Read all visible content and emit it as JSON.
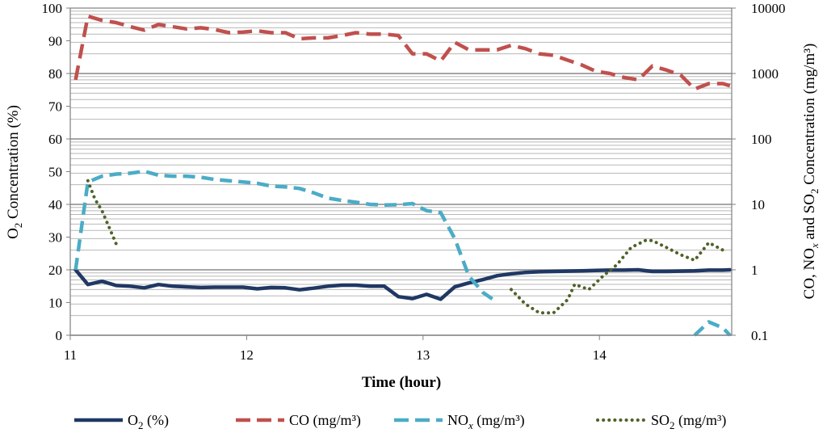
{
  "chart_data": {
    "type": "line",
    "title": "",
    "xlabel": "Time (hour)",
    "ylabel_left": "O2 Concentration (%)",
    "ylabel_right": "CO, NOx and SO2 Concentration (mg/m³)",
    "xlim": [
      11.0,
      14.75
    ],
    "ylim_left": [
      0,
      100
    ],
    "ylim_right": [
      0.1,
      10000
    ],
    "right_axis_scale": "log",
    "grid": true,
    "legend_position": "bottom",
    "x_ticks": [
      11,
      12,
      13,
      14
    ],
    "left_ticks": [
      0,
      10,
      20,
      30,
      40,
      50,
      60,
      70,
      80,
      90,
      100
    ],
    "right_ticks": [
      0.1,
      1,
      10,
      100,
      1000,
      10000
    ],
    "x_tick_labels": [
      "11",
      "12",
      "13",
      "14"
    ],
    "left_tick_labels": [
      "0",
      "10",
      "20",
      "30",
      "40",
      "50",
      "60",
      "70",
      "80",
      "90",
      "100"
    ],
    "right_tick_labels": [
      "0.1",
      "1",
      "10",
      "100",
      "1000",
      "10000"
    ],
    "series": [
      {
        "name": "O2 (%)",
        "axis": "left",
        "color": "#1f3864",
        "style": "solid",
        "points": [
          [
            11.03,
            20
          ],
          [
            11.1,
            15.5
          ],
          [
            11.18,
            16.5
          ],
          [
            11.26,
            15.2
          ],
          [
            11.34,
            15
          ],
          [
            11.42,
            14.5
          ],
          [
            11.5,
            15.5
          ],
          [
            11.58,
            15
          ],
          [
            11.66,
            14.8
          ],
          [
            11.74,
            14.6
          ],
          [
            11.82,
            14.7
          ],
          [
            11.9,
            14.7
          ],
          [
            11.98,
            14.7
          ],
          [
            12.06,
            14.2
          ],
          [
            12.14,
            14.6
          ],
          [
            12.22,
            14.5
          ],
          [
            12.3,
            13.9
          ],
          [
            12.38,
            14.4
          ],
          [
            12.46,
            15
          ],
          [
            12.54,
            15.3
          ],
          [
            12.62,
            15.3
          ],
          [
            12.7,
            15
          ],
          [
            12.78,
            15
          ],
          [
            12.86,
            11.8
          ],
          [
            12.94,
            11.2
          ],
          [
            13.02,
            12.5
          ],
          [
            13.1,
            11
          ],
          [
            13.18,
            14.8
          ],
          [
            13.26,
            16
          ],
          [
            13.34,
            17
          ],
          [
            13.42,
            18.2
          ],
          [
            13.5,
            18.8
          ],
          [
            13.58,
            19.2
          ],
          [
            13.66,
            19.4
          ],
          [
            13.74,
            19.5
          ],
          [
            13.82,
            19.6
          ],
          [
            13.9,
            19.7
          ],
          [
            13.98,
            19.8
          ],
          [
            14.06,
            19.9
          ],
          [
            14.14,
            19.9
          ],
          [
            14.22,
            20
          ],
          [
            14.3,
            19.5
          ],
          [
            14.38,
            19.5
          ],
          [
            14.46,
            19.6
          ],
          [
            14.54,
            19.7
          ],
          [
            14.62,
            19.9
          ],
          [
            14.7,
            19.9
          ],
          [
            14.74,
            20
          ]
        ]
      },
      {
        "name": "CO (mg/m³)",
        "axis": "right",
        "color": "#c0504d",
        "style": "dashed",
        "points": [
          [
            11.03,
            800
          ],
          [
            11.1,
            7500
          ],
          [
            11.18,
            6500
          ],
          [
            11.26,
            6000
          ],
          [
            11.34,
            5200
          ],
          [
            11.42,
            4600
          ],
          [
            11.5,
            5600
          ],
          [
            11.58,
            5200
          ],
          [
            11.66,
            4800
          ],
          [
            11.74,
            5000
          ],
          [
            11.82,
            4700
          ],
          [
            11.9,
            4200
          ],
          [
            11.98,
            4300
          ],
          [
            12.06,
            4500
          ],
          [
            12.14,
            4200
          ],
          [
            12.22,
            4200
          ],
          [
            12.3,
            3400
          ],
          [
            12.38,
            3500
          ],
          [
            12.46,
            3500
          ],
          [
            12.54,
            3800
          ],
          [
            12.62,
            4200
          ],
          [
            12.7,
            4000
          ],
          [
            12.78,
            4000
          ],
          [
            12.86,
            3800
          ],
          [
            12.94,
            2000
          ],
          [
            13.02,
            2000
          ],
          [
            13.1,
            1550
          ],
          [
            13.18,
            3000
          ],
          [
            13.26,
            2300
          ],
          [
            13.34,
            2300
          ],
          [
            13.42,
            2300
          ],
          [
            13.5,
            2700
          ],
          [
            13.58,
            2400
          ],
          [
            13.66,
            2000
          ],
          [
            13.74,
            1900
          ],
          [
            13.82,
            1600
          ],
          [
            13.9,
            1350
          ],
          [
            13.98,
            1080
          ],
          [
            14.06,
            1000
          ],
          [
            14.14,
            870
          ],
          [
            14.22,
            800
          ],
          [
            14.3,
            1300
          ],
          [
            14.38,
            1130
          ],
          [
            14.46,
            950
          ],
          [
            14.54,
            580
          ],
          [
            14.62,
            700
          ],
          [
            14.7,
            700
          ],
          [
            14.74,
            650
          ]
        ]
      },
      {
        "name": "NOx (mg/m³)",
        "axis": "right",
        "color": "#4bacc6",
        "style": "dashed",
        "segments": [
          [
            [
              11.03,
              1
            ],
            [
              11.1,
              22
            ],
            [
              11.18,
              27
            ],
            [
              11.26,
              29
            ],
            [
              11.34,
              30
            ],
            [
              11.42,
              32
            ],
            [
              11.5,
              28
            ],
            [
              11.58,
              27
            ],
            [
              11.66,
              27
            ],
            [
              11.74,
              26
            ],
            [
              11.82,
              24
            ],
            [
              11.9,
              23
            ],
            [
              11.98,
              22
            ],
            [
              12.06,
              21
            ],
            [
              12.14,
              19
            ],
            [
              12.22,
              18.5
            ],
            [
              12.3,
              17.5
            ],
            [
              12.38,
              15
            ],
            [
              12.46,
              12.5
            ],
            [
              12.54,
              11.5
            ],
            [
              12.62,
              10.8
            ],
            [
              12.7,
              10
            ],
            [
              12.78,
              9.8
            ],
            [
              12.86,
              9.9
            ],
            [
              12.94,
              10.3
            ],
            [
              13.02,
              8
            ],
            [
              13.1,
              7.5
            ],
            [
              13.18,
              3
            ],
            [
              13.26,
              0.8
            ],
            [
              13.34,
              0.45
            ],
            [
              13.42,
              0.32
            ]
          ],
          [
            [
              14.54,
              0.1
            ],
            [
              14.62,
              0.16
            ],
            [
              14.7,
              0.13
            ],
            [
              14.74,
              0.1
            ]
          ]
        ]
      },
      {
        "name": "SO2 (mg/m³)",
        "axis": "right",
        "color": "#4f6228",
        "style": "dotted",
        "segments": [
          [
            [
              11.1,
              23
            ],
            [
              11.14,
              12
            ],
            [
              11.18,
              8
            ],
            [
              11.22,
              4.5
            ],
            [
              11.26,
              2.5
            ]
          ],
          [
            [
              13.5,
              0.5
            ],
            [
              13.58,
              0.3
            ],
            [
              13.66,
              0.22
            ],
            [
              13.74,
              0.22
            ],
            [
              13.82,
              0.35
            ],
            [
              13.86,
              0.6
            ],
            [
              13.94,
              0.5
            ],
            [
              14.02,
              0.8
            ],
            [
              14.1,
              1.2
            ],
            [
              14.18,
              2.2
            ],
            [
              14.26,
              2.8
            ],
            [
              14.3,
              2.8
            ],
            [
              14.38,
              2.2
            ],
            [
              14.46,
              1.7
            ],
            [
              14.54,
              1.4
            ],
            [
              14.62,
              2.6
            ],
            [
              14.7,
              2
            ]
          ]
        ]
      }
    ]
  },
  "legend": [
    {
      "key": "o2",
      "main": "O",
      "sub": "2",
      "rest": " (%)",
      "color": "#1f3864",
      "style": "solid"
    },
    {
      "key": "co",
      "main": "CO",
      "sub": "",
      "rest": " (mg/m³)",
      "color": "#c0504d",
      "style": "dashed"
    },
    {
      "key": "nox",
      "main": "NO",
      "sub": "x",
      "rest": " (mg/m³)",
      "color": "#4bacc6",
      "style": "dashed"
    },
    {
      "key": "so2",
      "main": "SO",
      "sub": "2",
      "rest": " (mg/m³)",
      "color": "#4f6228",
      "style": "dotted"
    }
  ]
}
